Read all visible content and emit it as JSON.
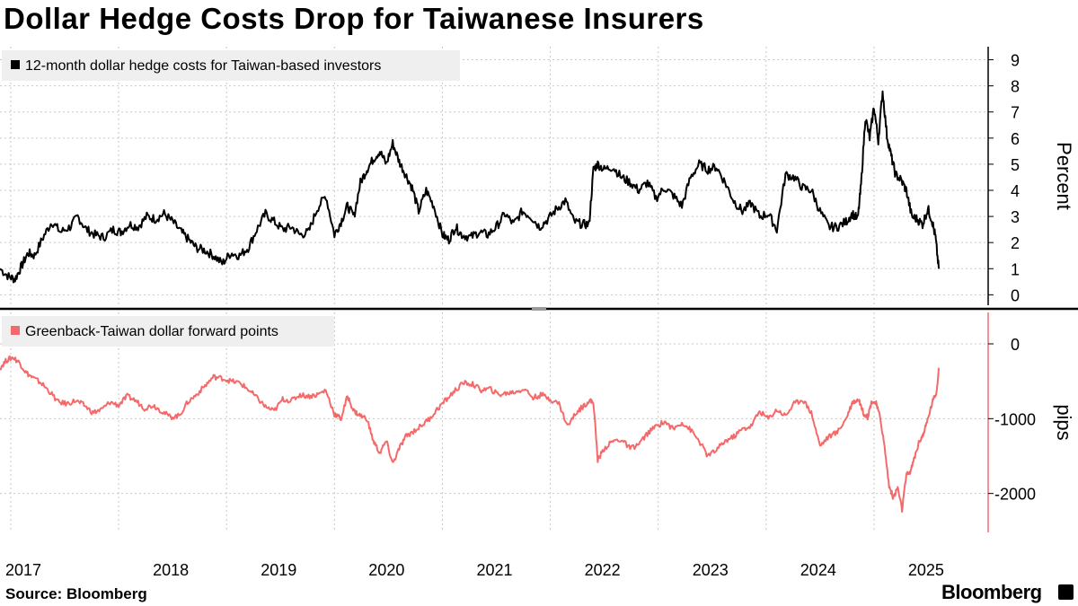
{
  "title": "Dollar Hedge Costs Drop for Taiwanese Insurers",
  "source": "Source: Bloomberg",
  "brand": "Bloomberg",
  "chart_data": [
    {
      "type": "line",
      "legend": "12-month dollar hedge costs for Taiwan-based investors",
      "ylabel": "Percent",
      "color": "#000000",
      "ylim": [
        -0.4,
        9.5
      ],
      "yticks": [
        0,
        1,
        2,
        3,
        4,
        5,
        6,
        7,
        8,
        9
      ],
      "xticks": [
        "2017",
        "2018",
        "2019",
        "2020",
        "2021",
        "2022",
        "2023",
        "2024",
        "2025"
      ],
      "xlim": [
        2016.9,
        2025.85
      ],
      "grid": true,
      "x": [
        2016.9,
        2016.98,
        2017.04,
        2017.1,
        2017.16,
        2017.22,
        2017.3,
        2017.38,
        2017.46,
        2017.55,
        2017.62,
        2017.7,
        2017.78,
        2017.86,
        2017.95,
        2018.02,
        2018.1,
        2018.18,
        2018.26,
        2018.34,
        2018.42,
        2018.5,
        2018.58,
        2018.65,
        2018.72,
        2018.8,
        2018.88,
        2018.96,
        2019.04,
        2019.12,
        2019.2,
        2019.28,
        2019.36,
        2019.44,
        2019.52,
        2019.6,
        2019.68,
        2019.76,
        2019.84,
        2019.92,
        2020.0,
        2020.06,
        2020.12,
        2020.18,
        2020.24,
        2020.3,
        2020.36,
        2020.42,
        2020.48,
        2020.54,
        2020.6,
        2020.66,
        2020.72,
        2020.78,
        2020.85,
        2020.92,
        2021.0,
        2021.06,
        2021.12,
        2021.18,
        2021.26,
        2021.34,
        2021.42,
        2021.5,
        2021.58,
        2021.66,
        2021.74,
        2021.82,
        2021.9,
        2021.98,
        2022.06,
        2022.14,
        2022.22,
        2022.3,
        2022.36,
        2022.4,
        2022.44,
        2022.5,
        2022.58,
        2022.66,
        2022.74,
        2022.82,
        2022.9,
        2022.98,
        2023.06,
        2023.14,
        2023.22,
        2023.3,
        2023.38,
        2023.46,
        2023.54,
        2023.62,
        2023.7,
        2023.78,
        2023.86,
        2023.94,
        2024.02,
        2024.1,
        2024.18,
        2024.26,
        2024.34,
        2024.42,
        2024.5,
        2024.58,
        2024.66,
        2024.74,
        2024.8,
        2024.85,
        2024.88,
        2024.92,
        2024.96,
        2025.0,
        2025.04,
        2025.08,
        2025.12,
        2025.16,
        2025.2,
        2025.25,
        2025.3,
        2025.35,
        2025.4,
        2025.45,
        2025.5,
        2025.54,
        2025.57,
        2025.6
      ],
      "y": [
        1.0,
        0.7,
        0.6,
        1.1,
        1.6,
        1.5,
        2.2,
        2.8,
        2.4,
        2.6,
        3.0,
        2.5,
        2.3,
        2.2,
        2.5,
        2.4,
        2.7,
        2.6,
        3.0,
        2.9,
        3.1,
        2.8,
        2.4,
        2.1,
        1.8,
        1.7,
        1.5,
        1.2,
        1.6,
        1.5,
        1.8,
        2.5,
        3.1,
        2.8,
        2.5,
        2.6,
        2.3,
        2.4,
        3.3,
        3.8,
        2.3,
        2.8,
        3.4,
        3.0,
        4.3,
        4.8,
        5.2,
        5.5,
        5.0,
        5.8,
        5.1,
        4.6,
        4.1,
        3.2,
        4.0,
        3.4,
        2.3,
        2.1,
        2.6,
        2.3,
        2.2,
        2.4,
        2.3,
        2.6,
        3.1,
        2.7,
        3.2,
        3.0,
        2.6,
        2.9,
        3.3,
        3.6,
        2.8,
        2.7,
        2.7,
        4.8,
        5.0,
        4.8,
        4.9,
        4.5,
        4.3,
        4.0,
        4.3,
        3.7,
        4.1,
        3.8,
        3.4,
        4.5,
        5.0,
        4.8,
        4.9,
        4.3,
        3.6,
        3.2,
        3.5,
        3.0,
        3.1,
        2.5,
        4.6,
        4.5,
        4.1,
        4.0,
        3.2,
        2.6,
        2.6,
        2.8,
        3.1,
        2.9,
        4.2,
        6.8,
        6.0,
        7.2,
        5.9,
        7.8,
        6.1,
        5.3,
        4.6,
        4.4,
        4.0,
        3.0,
        2.9,
        2.7,
        3.3,
        2.8,
        2.2,
        1.0
      ]
    },
    {
      "type": "line",
      "legend": "Greenback-Taiwan dollar forward points",
      "ylabel": "pips",
      "color": "#f46a6a",
      "ylim": [
        -2520,
        420
      ],
      "yticks": [
        0,
        -1000,
        -2000
      ],
      "xticks": [
        "2017",
        "2018",
        "2019",
        "2020",
        "2021",
        "2022",
        "2023",
        "2024",
        "2025"
      ],
      "xlim": [
        2016.9,
        2025.85
      ],
      "grid": true,
      "x": [
        2016.9,
        2016.96,
        2017.02,
        2017.08,
        2017.14,
        2017.2,
        2017.28,
        2017.36,
        2017.44,
        2017.52,
        2017.6,
        2017.68,
        2017.76,
        2017.84,
        2017.92,
        2018.0,
        2018.08,
        2018.16,
        2018.24,
        2018.32,
        2018.4,
        2018.48,
        2018.56,
        2018.64,
        2018.72,
        2018.8,
        2018.88,
        2018.96,
        2019.04,
        2019.12,
        2019.2,
        2019.28,
        2019.36,
        2019.44,
        2019.52,
        2019.6,
        2019.68,
        2019.76,
        2019.84,
        2019.92,
        2020.0,
        2020.06,
        2020.12,
        2020.18,
        2020.24,
        2020.3,
        2020.36,
        2020.42,
        2020.48,
        2020.54,
        2020.6,
        2020.66,
        2020.72,
        2020.8,
        2020.88,
        2020.96,
        2021.04,
        2021.12,
        2021.2,
        2021.28,
        2021.36,
        2021.44,
        2021.52,
        2021.6,
        2021.68,
        2021.76,
        2021.84,
        2021.92,
        2022.0,
        2022.08,
        2022.16,
        2022.24,
        2022.3,
        2022.36,
        2022.4,
        2022.44,
        2022.5,
        2022.58,
        2022.66,
        2022.74,
        2022.82,
        2022.9,
        2022.98,
        2023.06,
        2023.14,
        2023.22,
        2023.3,
        2023.38,
        2023.46,
        2023.54,
        2023.62,
        2023.7,
        2023.78,
        2023.86,
        2023.94,
        2024.02,
        2024.1,
        2024.18,
        2024.26,
        2024.34,
        2024.42,
        2024.5,
        2024.58,
        2024.66,
        2024.74,
        2024.8,
        2024.86,
        2024.9,
        2024.94,
        2024.98,
        2025.02,
        2025.06,
        2025.1,
        2025.14,
        2025.18,
        2025.22,
        2025.26,
        2025.3,
        2025.34,
        2025.38,
        2025.42,
        2025.46,
        2025.5,
        2025.54,
        2025.58,
        2025.6
      ],
      "y": [
        -320,
        -220,
        -180,
        -250,
        -380,
        -450,
        -520,
        -640,
        -780,
        -800,
        -760,
        -820,
        -920,
        -880,
        -780,
        -820,
        -700,
        -760,
        -860,
        -820,
        -900,
        -980,
        -960,
        -780,
        -680,
        -560,
        -440,
        -460,
        -500,
        -520,
        -610,
        -720,
        -840,
        -900,
        -740,
        -760,
        -680,
        -700,
        -680,
        -620,
        -940,
        -1000,
        -700,
        -900,
        -960,
        -1000,
        -1300,
        -1460,
        -1300,
        -1600,
        -1400,
        -1240,
        -1180,
        -1100,
        -1000,
        -860,
        -740,
        -620,
        -520,
        -540,
        -620,
        -600,
        -680,
        -660,
        -640,
        -600,
        -720,
        -680,
        -740,
        -800,
        -1100,
        -920,
        -840,
        -760,
        -780,
        -1550,
        -1400,
        -1300,
        -1280,
        -1400,
        -1340,
        -1200,
        -1100,
        -1040,
        -1140,
        -1050,
        -1150,
        -1300,
        -1500,
        -1420,
        -1300,
        -1240,
        -1140,
        -1100,
        -900,
        -1000,
        -880,
        -960,
        -800,
        -740,
        -920,
        -1360,
        -1240,
        -1180,
        -1000,
        -780,
        -740,
        -920,
        -980,
        -760,
        -800,
        -1000,
        -1400,
        -1900,
        -2060,
        -1920,
        -2220,
        -1760,
        -1700,
        -1500,
        -1300,
        -1200,
        -1000,
        -780,
        -640,
        -320
      ]
    }
  ]
}
